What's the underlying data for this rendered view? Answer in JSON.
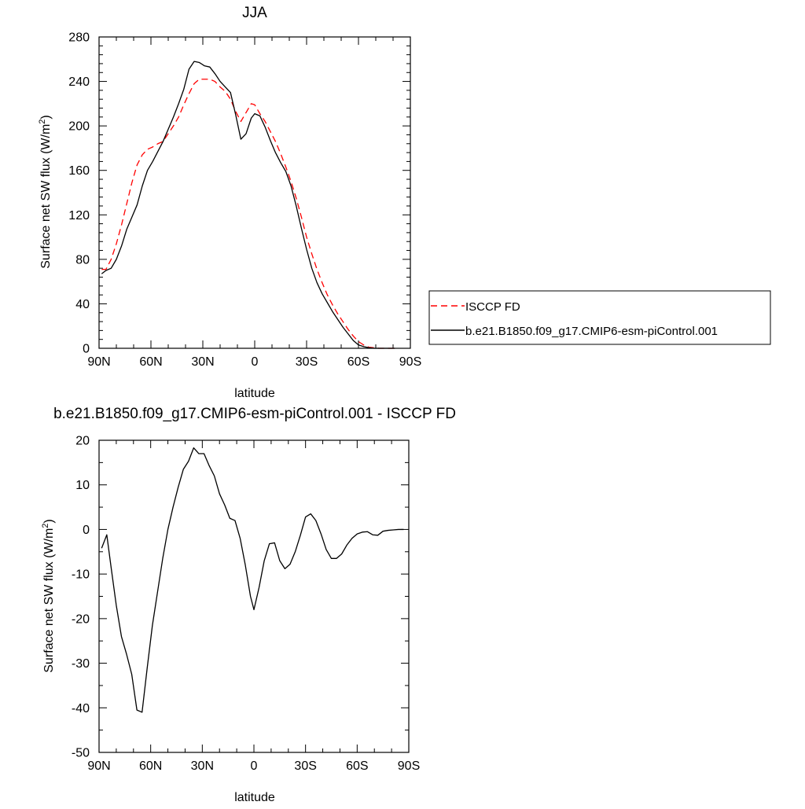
{
  "chart_data": [
    {
      "type": "line",
      "title": "JJA",
      "xlabel": "latitude",
      "ylabel": "Surface net SW flux (W/m",
      "ylabel_sup": "2",
      "ylabel_end": ")",
      "xlim": [
        90,
        -90
      ],
      "ylim": [
        0,
        280
      ],
      "xticks": [
        90,
        60,
        30,
        0,
        -30,
        -60,
        -90
      ],
      "xtick_labels": [
        "90N",
        "60N",
        "30N",
        "0",
        "30S",
        "60S",
        "90S"
      ],
      "yticks": [
        0,
        40,
        80,
        120,
        160,
        200,
        240,
        280
      ],
      "ytick_labels": [
        "0",
        "40",
        "80",
        "120",
        "160",
        "200",
        "240",
        "280"
      ],
      "legend": {
        "placement": "right"
      },
      "series": [
        {
          "name": "ISCCP FD",
          "color": "#ff0000",
          "style": "dashed",
          "x": [
            88.5,
            86,
            83,
            80,
            77,
            74,
            71,
            68,
            65,
            62,
            59,
            56,
            53,
            50,
            47,
            44,
            41,
            38,
            35,
            32,
            29,
            26,
            23,
            20,
            17,
            14,
            11,
            8,
            5,
            2,
            0,
            -3,
            -6,
            -9,
            -12,
            -15,
            -18,
            -21,
            -24,
            -27,
            -30,
            -33,
            -36,
            -39,
            -42,
            -45,
            -48,
            -51,
            -54,
            -57,
            -60,
            -63,
            -66,
            -69,
            -72,
            -75,
            -78,
            -81
          ],
          "values": [
            71,
            71,
            80,
            94,
            111,
            130,
            149,
            165,
            174,
            179,
            181,
            184,
            186,
            193,
            200,
            208,
            219,
            229,
            238,
            242,
            242,
            242,
            240,
            235,
            231,
            224,
            213,
            204,
            212,
            220,
            219,
            211,
            204,
            195,
            186,
            175,
            163,
            150,
            135,
            118,
            100,
            85,
            71,
            59,
            48,
            39,
            31,
            24,
            17,
            11,
            6,
            3,
            1,
            0.5,
            0,
            0,
            0,
            0
          ]
        },
        {
          "name": "b.e21.B1850.f09_g17.CMIP6-esm-piControl.001",
          "color": "#000000",
          "style": "solid",
          "x": [
            88.5,
            86,
            83,
            80,
            77,
            74,
            71,
            68,
            65,
            62,
            59,
            56,
            53,
            50,
            47,
            44,
            41,
            38,
            35,
            32,
            29,
            26,
            23,
            20,
            17,
            14,
            11,
            8,
            5,
            2,
            0,
            -3,
            -6,
            -9,
            -12,
            -15,
            -18,
            -21,
            -24,
            -27,
            -30,
            -33,
            -36,
            -39,
            -42,
            -45,
            -48,
            -51,
            -54,
            -57,
            -60,
            -63,
            -66,
            -69,
            -72,
            -75,
            -78,
            -81
          ],
          "values": [
            67,
            70,
            72,
            80,
            92,
            107,
            118,
            129,
            146,
            160,
            168,
            177,
            186,
            197,
            208,
            220,
            233,
            251,
            258,
            257,
            254,
            253,
            247,
            240,
            235,
            230,
            210,
            188,
            193,
            207,
            211,
            209,
            199,
            187,
            176,
            167,
            159,
            146,
            128,
            108,
            89,
            72,
            59,
            49,
            41,
            33,
            26,
            19,
            13,
            7,
            3,
            1.5,
            0.5,
            0,
            0,
            0,
            0,
            0
          ]
        }
      ]
    },
    {
      "type": "line",
      "title": "b.e21.B1850.f09_g17.CMIP6-esm-piControl.001 - ISCCP FD",
      "xlabel": "latitude",
      "ylabel": "Surface net SW flux (W/m",
      "ylabel_sup": "2",
      "ylabel_end": ")",
      "xlim": [
        90,
        -90
      ],
      "ylim": [
        -50,
        20
      ],
      "xticks": [
        90,
        60,
        30,
        0,
        -30,
        -60,
        -90
      ],
      "xtick_labels": [
        "90N",
        "60N",
        "30N",
        "0",
        "30S",
        "60S",
        "90S"
      ],
      "yticks": [
        -50,
        -40,
        -30,
        -20,
        -10,
        0,
        10,
        20
      ],
      "ytick_labels": [
        "-50",
        "-40",
        "-30",
        "-20",
        "-10",
        "0",
        "10",
        "20"
      ],
      "series": [
        {
          "color": "#000000",
          "style": "solid",
          "x": [
            88.5,
            85.5,
            83,
            80,
            77,
            74,
            71,
            68,
            65,
            62,
            59,
            56,
            53,
            50,
            47,
            44,
            41,
            38,
            35,
            32,
            29,
            26,
            23,
            20,
            17,
            14,
            11,
            8,
            5,
            2,
            0,
            -3,
            -6,
            -9,
            -12,
            -15,
            -18,
            -21,
            -24,
            -27,
            -30,
            -33,
            -36,
            -39,
            -42,
            -45,
            -48,
            -51,
            -54,
            -57,
            -60,
            -63,
            -66,
            -69,
            -72,
            -75,
            -78,
            -81,
            -84,
            -87
          ],
          "values": [
            -4.2,
            -1.2,
            -8.5,
            -17,
            -24,
            -28,
            -32.5,
            -40.5,
            -41,
            -31,
            -21.5,
            -14,
            -6.5,
            0,
            5,
            9.5,
            13.5,
            15.3,
            18.3,
            17,
            17,
            14.3,
            12,
            8,
            5.5,
            2.5,
            2,
            -2,
            -8,
            -15,
            -18,
            -13,
            -7,
            -3.2,
            -3,
            -7,
            -8.8,
            -7.8,
            -5,
            -1.3,
            2.8,
            3.5,
            2,
            -1,
            -4.5,
            -6.5,
            -6.5,
            -5.5,
            -3.5,
            -2,
            -1,
            -0.6,
            -0.5,
            -1.2,
            -1.3,
            -0.4,
            -0.2,
            -0.1,
            0,
            0
          ]
        }
      ]
    }
  ]
}
